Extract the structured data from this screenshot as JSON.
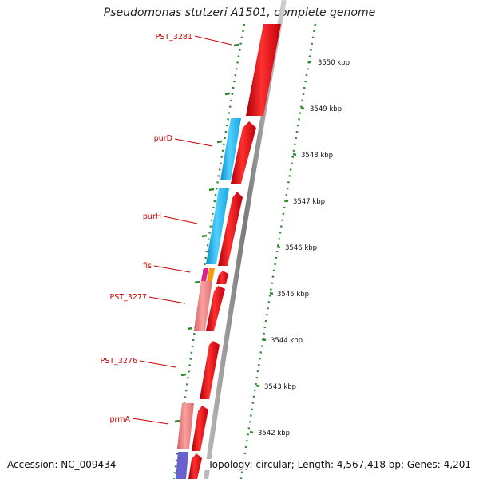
{
  "title": "Pseudomonas stutzeri A1501, complete genome",
  "footer": {
    "accession": "Accession: NC_009434",
    "topology": "Topology: circular; Length: 4,567,418 bp; Genes: 4,201"
  },
  "colors": {
    "cds_forward": "#e8000a",
    "gene_blue": "#19b5f0",
    "gene_pink": "#ef8080",
    "gene_magenta": "#e0208a",
    "gene_orange": "#f49a10",
    "gene_purple": "#6a5fcf",
    "backbone": "#888888",
    "ticks": "#2e8a2e",
    "label_red": "#cc0000"
  },
  "gene_labels": [
    {
      "name": "PST_3281"
    },
    {
      "name": "purD"
    },
    {
      "name": "purH"
    },
    {
      "name": "fis"
    },
    {
      "name": "PST_3277"
    },
    {
      "name": "PST_3276"
    },
    {
      "name": "prmA"
    }
  ],
  "kbp_ticks": [
    "3550 kbp",
    "3549 kbp",
    "3548 kbp",
    "3547 kbp",
    "3546 kbp",
    "3545 kbp",
    "3544 kbp",
    "3543 kbp",
    "3542 kbp"
  ]
}
